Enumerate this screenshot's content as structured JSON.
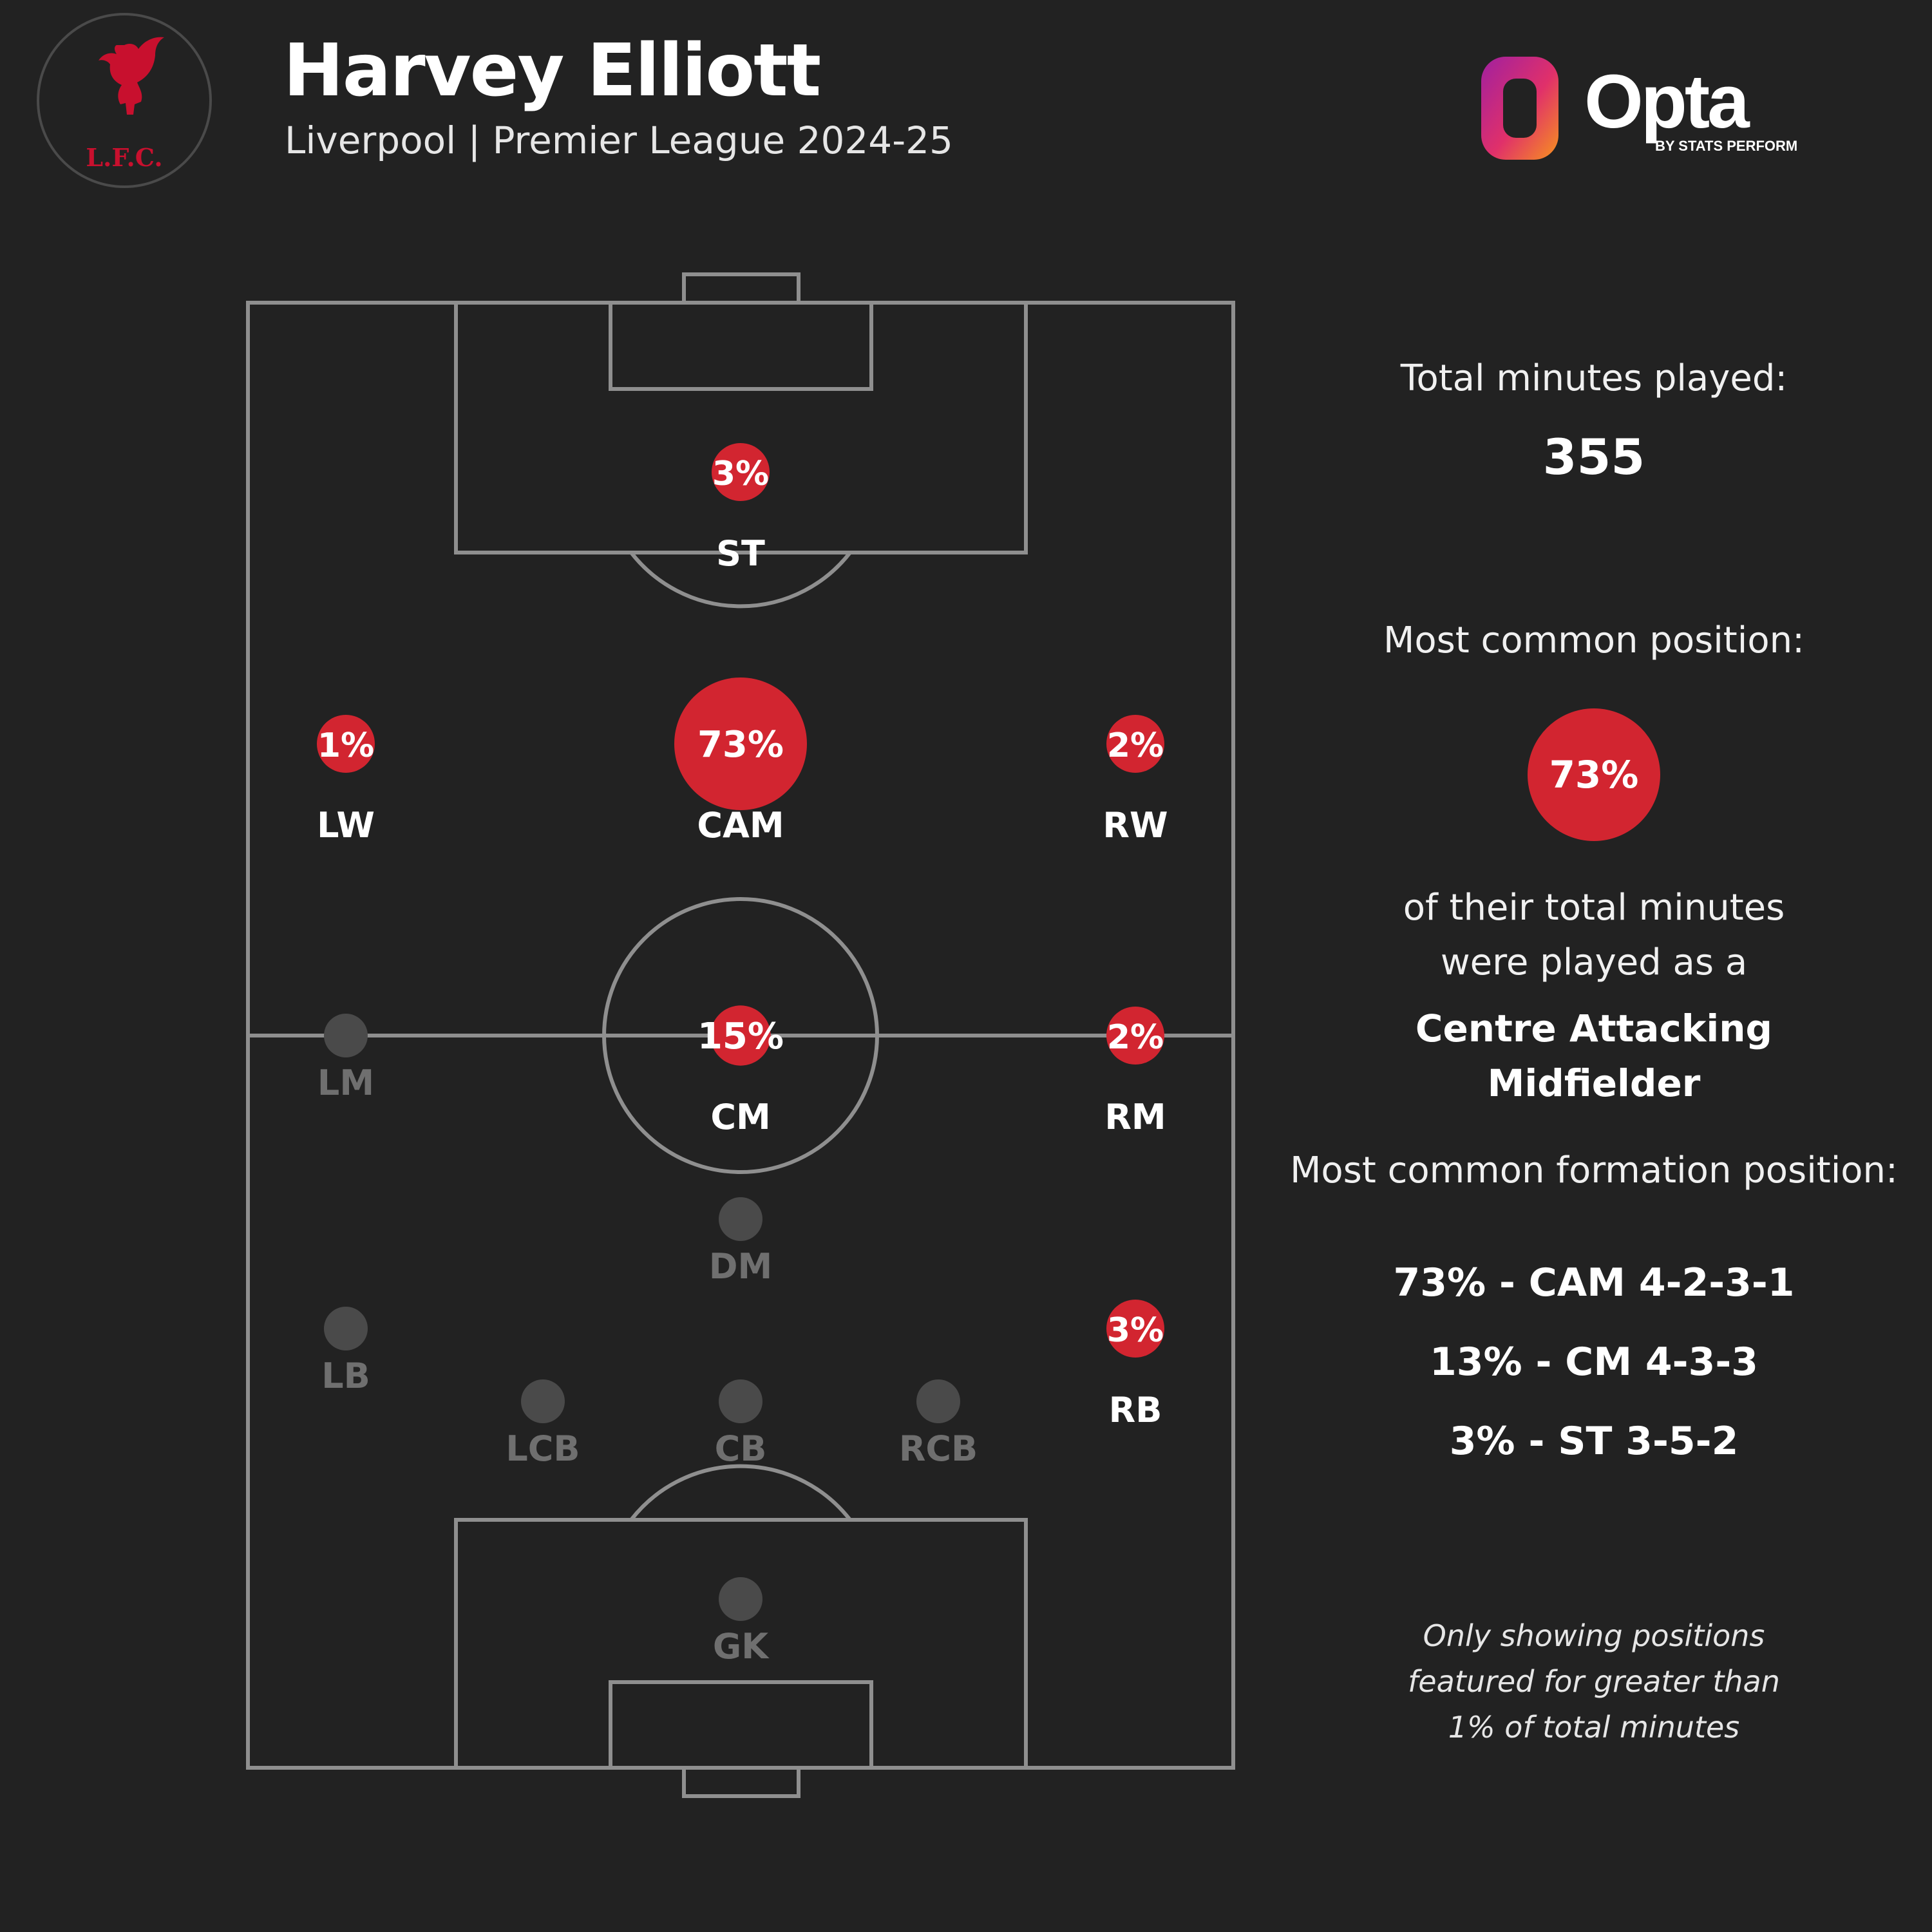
{
  "header": {
    "player_name": "Harvey Elliott",
    "subtitle": "Liverpool | Premier League 2024-25",
    "club_logo": "liverbird-crest",
    "club_crest_text": "L.F.C.",
    "brand_logo": "opta-logo",
    "brand_name": "Opta",
    "brand_tagline": "BY STATS PERFORM"
  },
  "sidebar": {
    "total_minutes_label": "Total minutes played:",
    "total_minutes_value": "355",
    "common_position_label": "Most common position:",
    "common_position_pct": "73%",
    "common_position_desc_1": "of their total minutes",
    "common_position_desc_2": "were played as a",
    "common_position_name_1": "Centre Attacking",
    "common_position_name_2": "Midfielder",
    "formation_label": "Most common formation position:",
    "formations": [
      "73% - CAM 4-2-3-1",
      "13% - CM 4-3-3",
      "3% - ST 3-5-2"
    ],
    "note_1": "Only showing positions",
    "note_2": "featured for greater than",
    "note_3": "1% of total minutes"
  },
  "colors": {
    "background": "#222222",
    "accent": "#d22530",
    "pitch_lines": "#8f8f8f",
    "inactive_marker": "#4a4a4a",
    "inactive_label": "#6f6f6f"
  },
  "chart_data": {
    "type": "scatter",
    "title": "",
    "unit": "% of total minutes",
    "positions": [
      {
        "code": "ST",
        "pct": 3,
        "label": "3%",
        "active": true
      },
      {
        "code": "LW",
        "pct": 1,
        "label": "1%",
        "active": true
      },
      {
        "code": "CAM",
        "pct": 73,
        "label": "73%",
        "active": true
      },
      {
        "code": "RW",
        "pct": 2,
        "label": "2%",
        "active": true
      },
      {
        "code": "LM",
        "pct": 0,
        "label": "",
        "active": false
      },
      {
        "code": "CM",
        "pct": 15,
        "label": "15%",
        "active": true
      },
      {
        "code": "RM",
        "pct": 2,
        "label": "2%",
        "active": true
      },
      {
        "code": "DM",
        "pct": 0,
        "label": "",
        "active": false
      },
      {
        "code": "LB",
        "pct": 0,
        "label": "",
        "active": false
      },
      {
        "code": "RB",
        "pct": 3,
        "label": "3%",
        "active": true
      },
      {
        "code": "LCB",
        "pct": 0,
        "label": "",
        "active": false
      },
      {
        "code": "CB",
        "pct": 0,
        "label": "",
        "active": false
      },
      {
        "code": "RCB",
        "pct": 0,
        "label": "",
        "active": false
      },
      {
        "code": "GK",
        "pct": 0,
        "label": "",
        "active": false
      }
    ]
  }
}
